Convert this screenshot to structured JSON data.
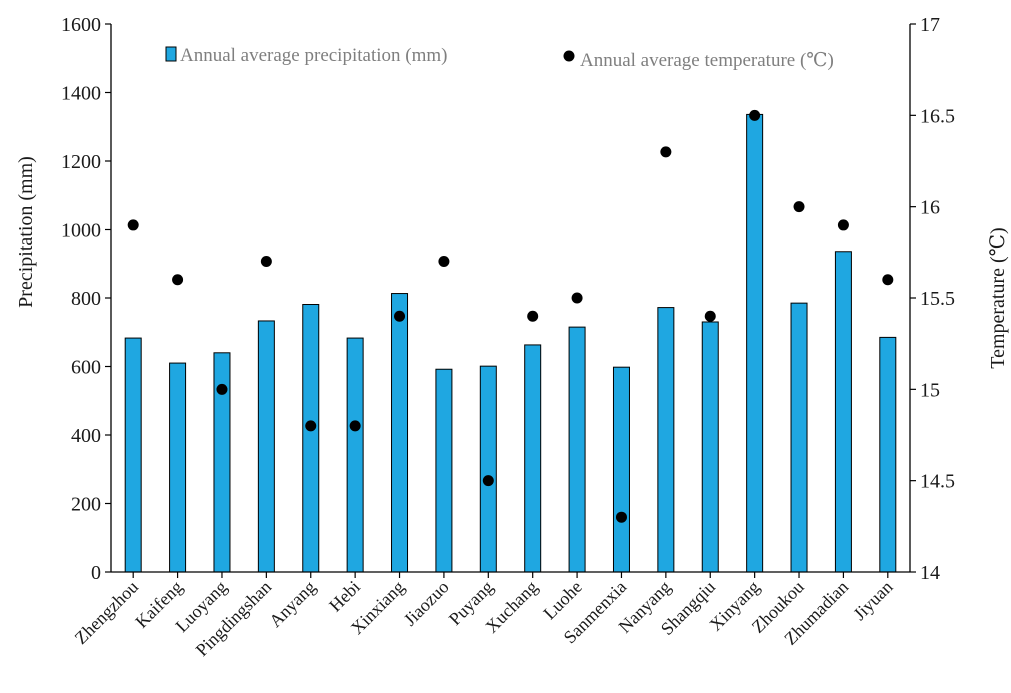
{
  "chart_data": {
    "type": "bar+scatter",
    "categories": [
      "Zhengzhou",
      "Kaifeng",
      "Luoyang",
      "Pingdingshan",
      "Anyang",
      "Hebi",
      "Xinxiang",
      "Jiaozuo",
      "Puyang",
      "Xuchang",
      "Luohe",
      "Sanmenxia",
      "Nanyang",
      "Shangqiu",
      "Xinyang",
      "Zhoukou",
      "Zhumadian",
      "Jiyuan"
    ],
    "series": [
      {
        "name": "Annual average precipitation (mm)",
        "type": "bar",
        "axis": "left",
        "color": "#1FA7E1",
        "values": [
          683,
          610,
          640,
          733,
          781,
          683,
          813,
          592,
          601,
          663,
          715,
          598,
          772,
          730,
          1336,
          785,
          935,
          685
        ]
      },
      {
        "name": "Annual average temperature (℃)",
        "type": "scatter",
        "axis": "right",
        "color": "#000000",
        "values": [
          15.9,
          15.6,
          15.0,
          15.7,
          14.8,
          14.8,
          15.4,
          15.7,
          14.5,
          15.4,
          15.5,
          14.3,
          16.3,
          15.4,
          16.5,
          16.0,
          15.9,
          15.6
        ]
      }
    ],
    "ylabel_left": "Precipitation (mm)",
    "ylabel_right": "Temperature (℃)",
    "ylim_left": [
      0,
      1600
    ],
    "yticks_left": [
      0,
      200,
      400,
      600,
      800,
      1000,
      1200,
      1400,
      1600
    ],
    "ylim_right": [
      14,
      17
    ],
    "yticks_right": [
      "14",
      "14.5",
      "15",
      "15.5",
      "16",
      "16.5",
      "17"
    ],
    "grid": false,
    "legend_position": "top"
  }
}
